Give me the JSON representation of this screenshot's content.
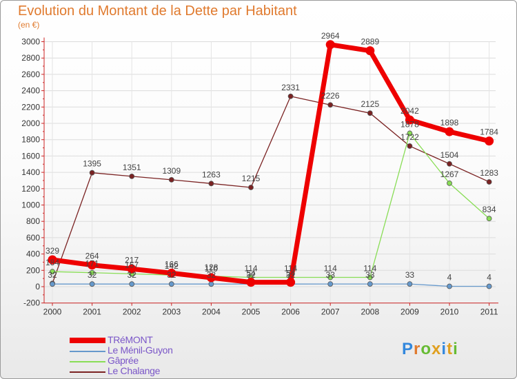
{
  "title": "Evolution du Montant de la Dette par Habitant",
  "unit": "(en €)",
  "logo_text": "Proxiti",
  "colors": {
    "title": "#e07a2e",
    "axis": "#cc2222",
    "label": "#333333",
    "legend_text": "#7a56c8"
  },
  "chart_data": {
    "type": "line",
    "title": "Evolution du Montant de la Dette par Habitant",
    "ylabel": "(en €)",
    "xlabel": "",
    "x": [
      "2000",
      "2001",
      "2002",
      "2003",
      "2004",
      "2005",
      "2006",
      "2007",
      "2008",
      "2009",
      "2010",
      "2011"
    ],
    "ylim": [
      -200,
      3000
    ],
    "yticks": [
      "-200",
      "0",
      "200",
      "400",
      "600",
      "800",
      "1000",
      "1200",
      "1400",
      "1600",
      "1800",
      "2000",
      "2200",
      "2400",
      "2600",
      "2800",
      "3000"
    ],
    "legend_position": "bottom-left",
    "series": [
      {
        "name": "TRéMONT",
        "color": "#ee0000",
        "width": 7,
        "values": [
          329,
          264,
          217,
          166,
          110,
          54,
          54,
          2964,
          2889,
          2042,
          1898,
          1784
        ],
        "labels": [
          "329",
          "264",
          "217",
          "166",
          "110",
          "54",
          "54",
          "2964",
          "2889",
          "2042",
          "1898",
          "1784"
        ]
      },
      {
        "name": "Le Ménil-Guyon",
        "color": "#6699cc",
        "width": 1.3,
        "values": [
          32,
          32,
          32,
          32,
          32,
          32,
          32,
          33,
          33,
          33,
          4,
          4
        ],
        "labels": [
          "32",
          "32",
          "32",
          "32",
          "32",
          "32",
          "32",
          "33",
          "33",
          "33",
          "4",
          "4"
        ]
      },
      {
        "name": "Gâprée",
        "color": "#88dd55",
        "width": 1.3,
        "values": [
          184,
          171,
          157,
          142,
          128,
          114,
          114,
          114,
          114,
          1878,
          1267,
          834
        ],
        "labels": [
          "184",
          "171",
          "157",
          "142",
          "128",
          "114",
          "114",
          "114",
          "114",
          "1878",
          "1267",
          "834"
        ]
      },
      {
        "name": "Le Chalange",
        "color": "#7a2222",
        "width": 1.3,
        "values": [
          40,
          1395,
          1351,
          1309,
          1263,
          1215,
          2331,
          2226,
          2125,
          1722,
          1504,
          1283
        ],
        "labels": [
          "",
          "1395",
          "1351",
          "1309",
          "1263",
          "1215",
          "2331",
          "2226",
          "2125",
          "1722",
          "1504",
          "1283"
        ]
      }
    ]
  }
}
